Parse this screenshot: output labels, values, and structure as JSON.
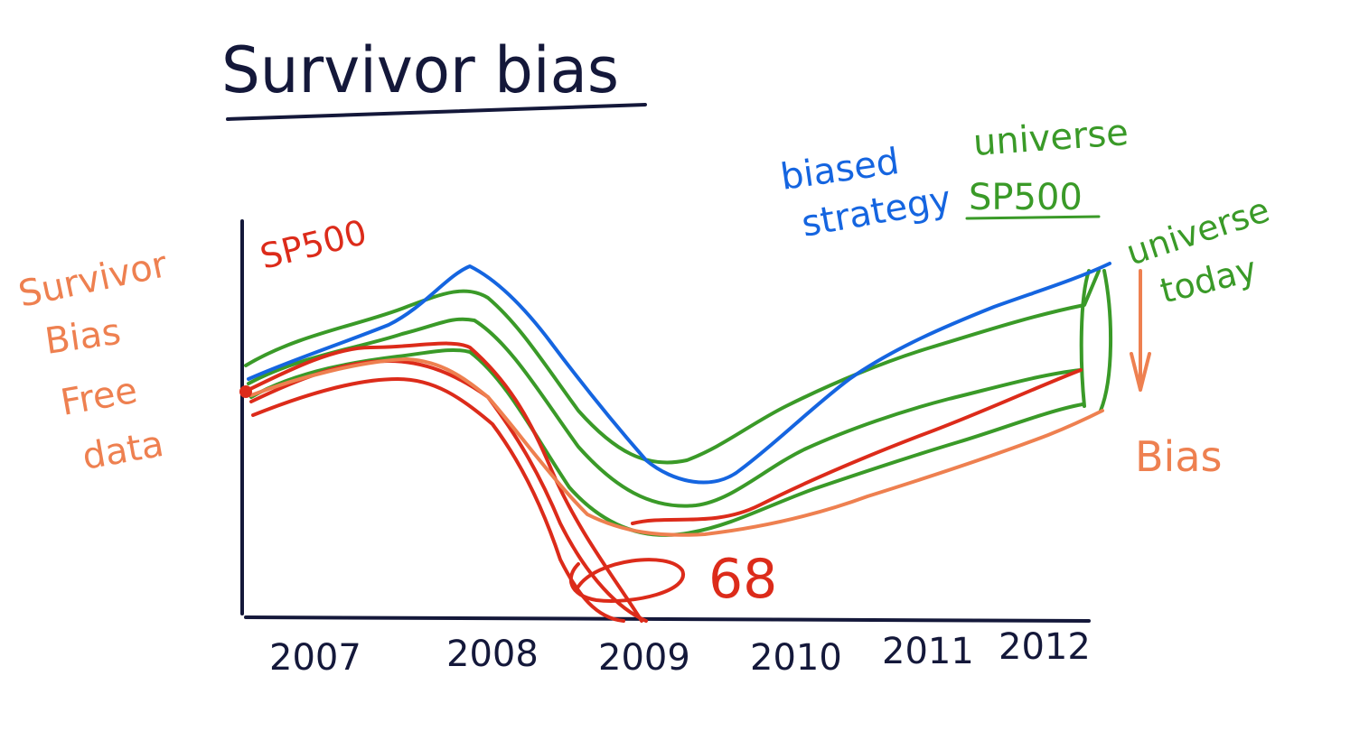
{
  "title": "Survivor bias",
  "colors": {
    "ink": "#14183a",
    "blue": "#1565e0",
    "green": "#3a9a28",
    "red": "#dc2b1a",
    "orange": "#ee8050"
  },
  "labels": {
    "sp500_red": "SP500",
    "free_data": [
      "Survivor",
      "Bias",
      "Free",
      "data"
    ],
    "biased_strategy": [
      "biased",
      "strategy"
    ],
    "universe_sp500": [
      "universe",
      "SP500"
    ],
    "universe_today": [
      "universe",
      "today"
    ],
    "bias": "Bias",
    "sixty_eight": "68"
  },
  "x_axis_years": [
    "2007",
    "2008",
    "2009",
    "2010",
    "2011",
    "2012"
  ]
}
